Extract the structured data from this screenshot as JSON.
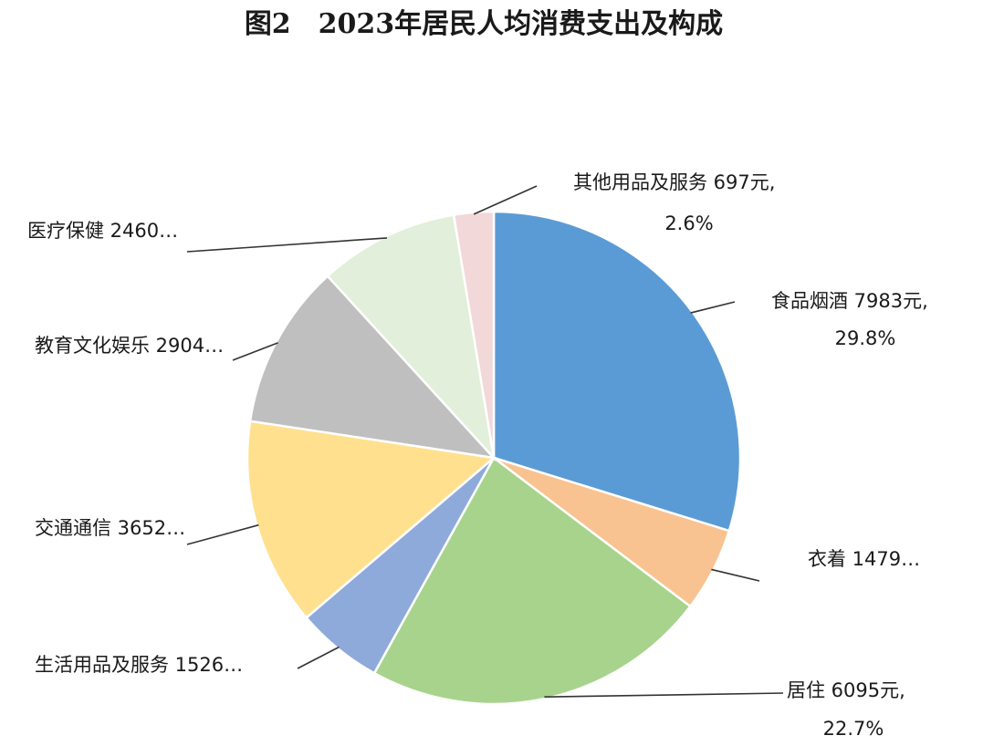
{
  "chart_data": {
    "type": "pie",
    "title": "图2　2023年居民人均消费支出及构成",
    "start_angle_deg": 0,
    "direction": "clockwise",
    "slices": [
      {
        "name": "食品烟酒",
        "label_line1": "食品烟酒 7983元,",
        "label_line2": "29.8%",
        "value": 7983,
        "percent": 29.8,
        "color": "#5b9bd5"
      },
      {
        "name": "衣着",
        "label_line1": "衣着 1479…",
        "label_line2": "",
        "value": 1479,
        "percent": 5.5,
        "color": "#f8c390"
      },
      {
        "name": "居住",
        "label_line1": "居住 6095元,",
        "label_line2": "22.7%",
        "value": 6095,
        "percent": 22.7,
        "color": "#a7d38c"
      },
      {
        "name": "生活用品及服务",
        "label_line1": "生活用品及服务 1526…",
        "label_line2": "",
        "value": 1526,
        "percent": 5.7,
        "color": "#8eaadb"
      },
      {
        "name": "交通通信",
        "label_line1": "交通通信 3652…",
        "label_line2": "",
        "value": 3652,
        "percent": 13.6,
        "color": "#ffe08f"
      },
      {
        "name": "教育文化娱乐",
        "label_line1": "教育文化娱乐 2904…",
        "label_line2": "",
        "value": 2904,
        "percent": 10.8,
        "color": "#bfbfbf"
      },
      {
        "name": "医疗保健",
        "label_line1": "医疗保健 2460…",
        "label_line2": "",
        "value": 2460,
        "percent": 9.2,
        "color": "#e2efda"
      },
      {
        "name": "其他用品及服务",
        "label_line1": "其他用品及服务 697元,",
        "label_line2": "2.6%",
        "value": 697,
        "percent": 2.6,
        "color": "#f2d8d9"
      }
    ]
  }
}
